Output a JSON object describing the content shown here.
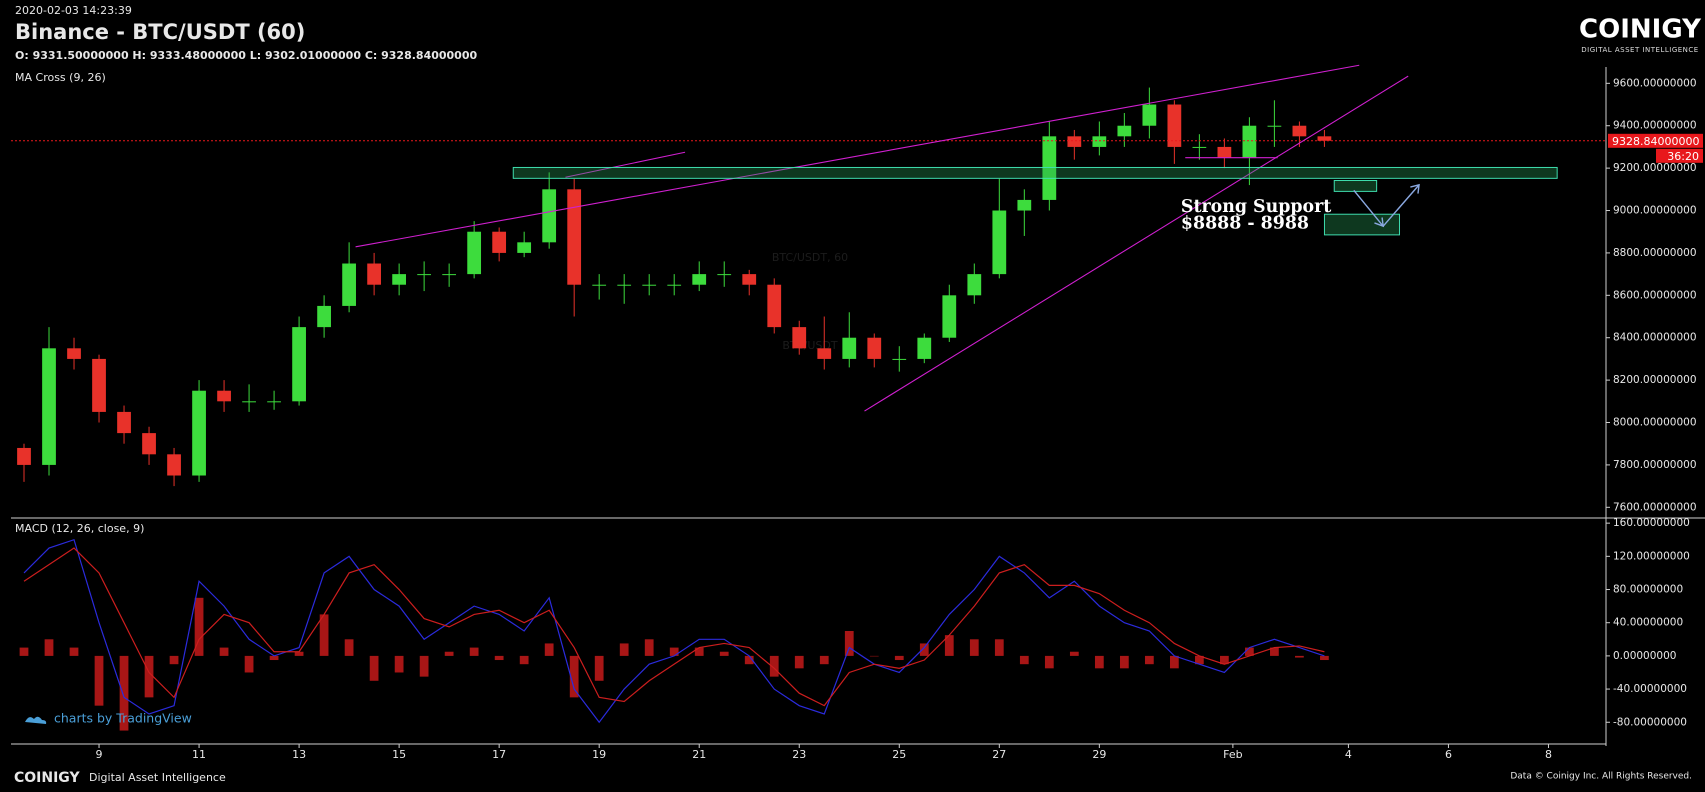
{
  "header": {
    "timestamp": "2020-02-03 14:23:39",
    "title": "Binance - BTC/USDT (60)",
    "ohlc": "O: 9331.50000000 H: 9333.48000000 L: 9302.01000000 C: 9328.84000000",
    "logo": "COINIGY",
    "logo_tagline": "DIGITAL ASSET INTELLIGENCE"
  },
  "watermark": {
    "symbol_interval": "BTC/USDT, 60",
    "symbol": "BTC/USDT"
  },
  "footer": {
    "brand": "COINIGY",
    "tagline": "Digital Asset Intelligence",
    "copyright": "Data © Coinigy Inc.  All Rights Reserved.",
    "attribution": "charts by TradingView"
  },
  "annotation": {
    "line1": "Strong Support",
    "line2": "$8888 - 8988"
  },
  "chart_data": [
    {
      "type": "candlestick",
      "indicator": "MA Cross (9, 26)",
      "x": [
        7.5,
        8,
        8.5,
        9,
        9.5,
        10,
        10.5,
        11,
        11.5,
        12,
        12.5,
        13,
        13.5,
        14,
        14.5,
        15,
        15.5,
        16,
        16.5,
        17,
        17.5,
        18,
        18.5,
        19,
        19.5,
        20,
        20.5,
        21,
        21.5,
        22,
        22.5,
        23,
        23.5,
        24,
        24.5,
        25,
        25.5,
        26,
        26.5,
        27,
        27.5,
        28,
        28.5,
        29,
        29.5,
        30,
        30.5,
        31,
        31.5,
        32,
        32.5,
        33,
        33.5
      ],
      "open": [
        7880,
        7800,
        8350,
        8300,
        8050,
        7950,
        7850,
        7750,
        8150,
        8100,
        8100,
        8100,
        8450,
        8550,
        8750,
        8650,
        8700,
        8700,
        8700,
        8900,
        8800,
        8850,
        9100,
        8650,
        8650,
        8650,
        8650,
        8650,
        8700,
        8700,
        8650,
        8450,
        8350,
        8300,
        8400,
        8300,
        8300,
        8400,
        8600,
        8700,
        9000,
        9050,
        9350,
        9300,
        9350,
        9400,
        9500,
        9300,
        9300,
        9250,
        9400,
        9400,
        9350
      ],
      "high": [
        7900,
        8450,
        8400,
        8320,
        8080,
        7980,
        7880,
        8200,
        8200,
        8180,
        8150,
        8500,
        8600,
        8850,
        8800,
        8750,
        8760,
        8750,
        8950,
        8920,
        8900,
        9180,
        9150,
        8700,
        8700,
        8700,
        8700,
        8760,
        8760,
        8720,
        8680,
        8480,
        8500,
        8520,
        8420,
        8360,
        8420,
        8650,
        8750,
        9150,
        9100,
        9420,
        9380,
        9420,
        9460,
        9580,
        9520,
        9360,
        9340,
        9440,
        9520,
        9420,
        9380
      ],
      "low": [
        7720,
        7750,
        8250,
        8000,
        7900,
        7800,
        7700,
        7720,
        8050,
        8050,
        8060,
        8080,
        8400,
        8520,
        8600,
        8600,
        8620,
        8640,
        8680,
        8760,
        8780,
        8820,
        8500,
        8580,
        8560,
        8600,
        8600,
        8620,
        8640,
        8600,
        8420,
        8320,
        8250,
        8260,
        8260,
        8240,
        8280,
        8380,
        8560,
        8680,
        8880,
        9000,
        9240,
        9260,
        9300,
        9340,
        9220,
        9240,
        9200,
        9120,
        9300,
        9300,
        9300
      ],
      "close": [
        7800,
        8350,
        8300,
        8050,
        7950,
        7850,
        7750,
        8150,
        8100,
        8100,
        8100,
        8450,
        8550,
        8750,
        8650,
        8700,
        8700,
        8700,
        8900,
        8800,
        8850,
        9100,
        8650,
        8650,
        8650,
        8650,
        8650,
        8700,
        8700,
        8650,
        8450,
        8350,
        8300,
        8400,
        8300,
        8300,
        8400,
        8600,
        8700,
        9000,
        9050,
        9350,
        9300,
        9350,
        9400,
        9500,
        9300,
        9300,
        9250,
        9400,
        9400,
        9350,
        9329
      ],
      "up_color": "#3ddc3d",
      "down_color": "#e8322a",
      "xlim": [
        7.24,
        39.13
      ],
      "ylim": [
        7559,
        9677
      ],
      "yticks": [
        {
          "value": 7600,
          "label": "7600.00000000"
        },
        {
          "value": 7800,
          "label": "7800.00000000"
        },
        {
          "value": 8000,
          "label": "8000.00000000"
        },
        {
          "value": 8200,
          "label": "8200.00000000"
        },
        {
          "value": 8400,
          "label": "8400.00000000"
        },
        {
          "value": 8600,
          "label": "8600.00000000"
        },
        {
          "value": 8800,
          "label": "8800.00000000"
        },
        {
          "value": 9000,
          "label": "9000.00000000"
        },
        {
          "value": 9200,
          "label": "9200.00000000"
        },
        {
          "value": 9400,
          "label": "9400.00000000"
        },
        {
          "value": 9600,
          "label": "9600.00000000"
        }
      ],
      "last_price": {
        "value": 9328.84,
        "label": "9328.84000000",
        "color": "#e8181c"
      },
      "countdown": "36:20",
      "grid": false
    },
    {
      "type": "macd",
      "title": "MACD (12, 26, close, 9)",
      "x": [
        7.5,
        8,
        8.5,
        9,
        9.5,
        10,
        10.5,
        11,
        11.5,
        12,
        12.5,
        13,
        13.5,
        14,
        14.5,
        15,
        15.5,
        16,
        16.5,
        17,
        17.5,
        18,
        18.5,
        19,
        19.5,
        20,
        20.5,
        21,
        21.5,
        22,
        22.5,
        23,
        23.5,
        24,
        24.5,
        25,
        25.5,
        26,
        26.5,
        27,
        27.5,
        28,
        28.5,
        29,
        29.5,
        30,
        30.5,
        31,
        31.5,
        32,
        32.5,
        33,
        33.5
      ],
      "macd": {
        "color": "#2b2bdc",
        "values": [
          100,
          130,
          140,
          40,
          -50,
          -70,
          -60,
          90,
          60,
          20,
          0,
          10,
          100,
          120,
          80,
          60,
          20,
          40,
          60,
          50,
          30,
          70,
          -40,
          -80,
          -40,
          -10,
          0,
          20,
          20,
          0,
          -40,
          -60,
          -70,
          10,
          -10,
          -20,
          10,
          50,
          80,
          120,
          100,
          70,
          90,
          60,
          40,
          30,
          0,
          -10,
          -20,
          10,
          20,
          10,
          0
        ]
      },
      "signal": {
        "color": "#cc1e1e",
        "values": [
          90,
          110,
          130,
          100,
          40,
          -20,
          -50,
          20,
          50,
          40,
          5,
          5,
          50,
          100,
          110,
          80,
          45,
          35,
          50,
          55,
          40,
          55,
          10,
          -50,
          -55,
          -30,
          -10,
          10,
          15,
          10,
          -15,
          -45,
          -60,
          -20,
          -10,
          -15,
          -5,
          25,
          60,
          100,
          110,
          85,
          85,
          75,
          55,
          40,
          15,
          0,
          -10,
          0,
          10,
          12,
          5
        ]
      },
      "histogram": {
        "color": "#a81616",
        "values": [
          10,
          20,
          10,
          -60,
          -90,
          -50,
          -10,
          70,
          10,
          -20,
          -5,
          5,
          50,
          20,
          -30,
          -20,
          -25,
          5,
          10,
          -5,
          -10,
          15,
          -50,
          -30,
          15,
          20,
          10,
          10,
          5,
          -10,
          -25,
          -15,
          -10,
          30,
          0,
          -5,
          15,
          25,
          20,
          20,
          -10,
          -15,
          5,
          -15,
          -15,
          -10,
          -15,
          -10,
          -10,
          10,
          10,
          -2,
          -5
        ]
      },
      "xlim": [
        7.24,
        39.13
      ],
      "ylim": [
        -105,
        165
      ],
      "yticks": [
        {
          "value": -80,
          "label": "-80.00000000"
        },
        {
          "value": -40,
          "label": "-40.00000000"
        },
        {
          "value": 0,
          "label": "0.00000000"
        },
        {
          "value": 40,
          "label": "40.00000000"
        },
        {
          "value": 80,
          "label": "80.00000000"
        },
        {
          "value": 120,
          "label": "120.00000000"
        },
        {
          "value": 160,
          "label": "160.00000000"
        }
      ],
      "xticks": [
        9,
        11,
        13,
        15,
        17,
        19,
        21,
        23,
        25,
        27,
        29,
        {
          "value": 31.67,
          "label": "Feb"
        },
        {
          "value": 33.98,
          "label": "4"
        },
        {
          "value": 35.98,
          "label": "6"
        },
        {
          "value": 37.98,
          "label": "8"
        }
      ],
      "grid": false
    }
  ]
}
